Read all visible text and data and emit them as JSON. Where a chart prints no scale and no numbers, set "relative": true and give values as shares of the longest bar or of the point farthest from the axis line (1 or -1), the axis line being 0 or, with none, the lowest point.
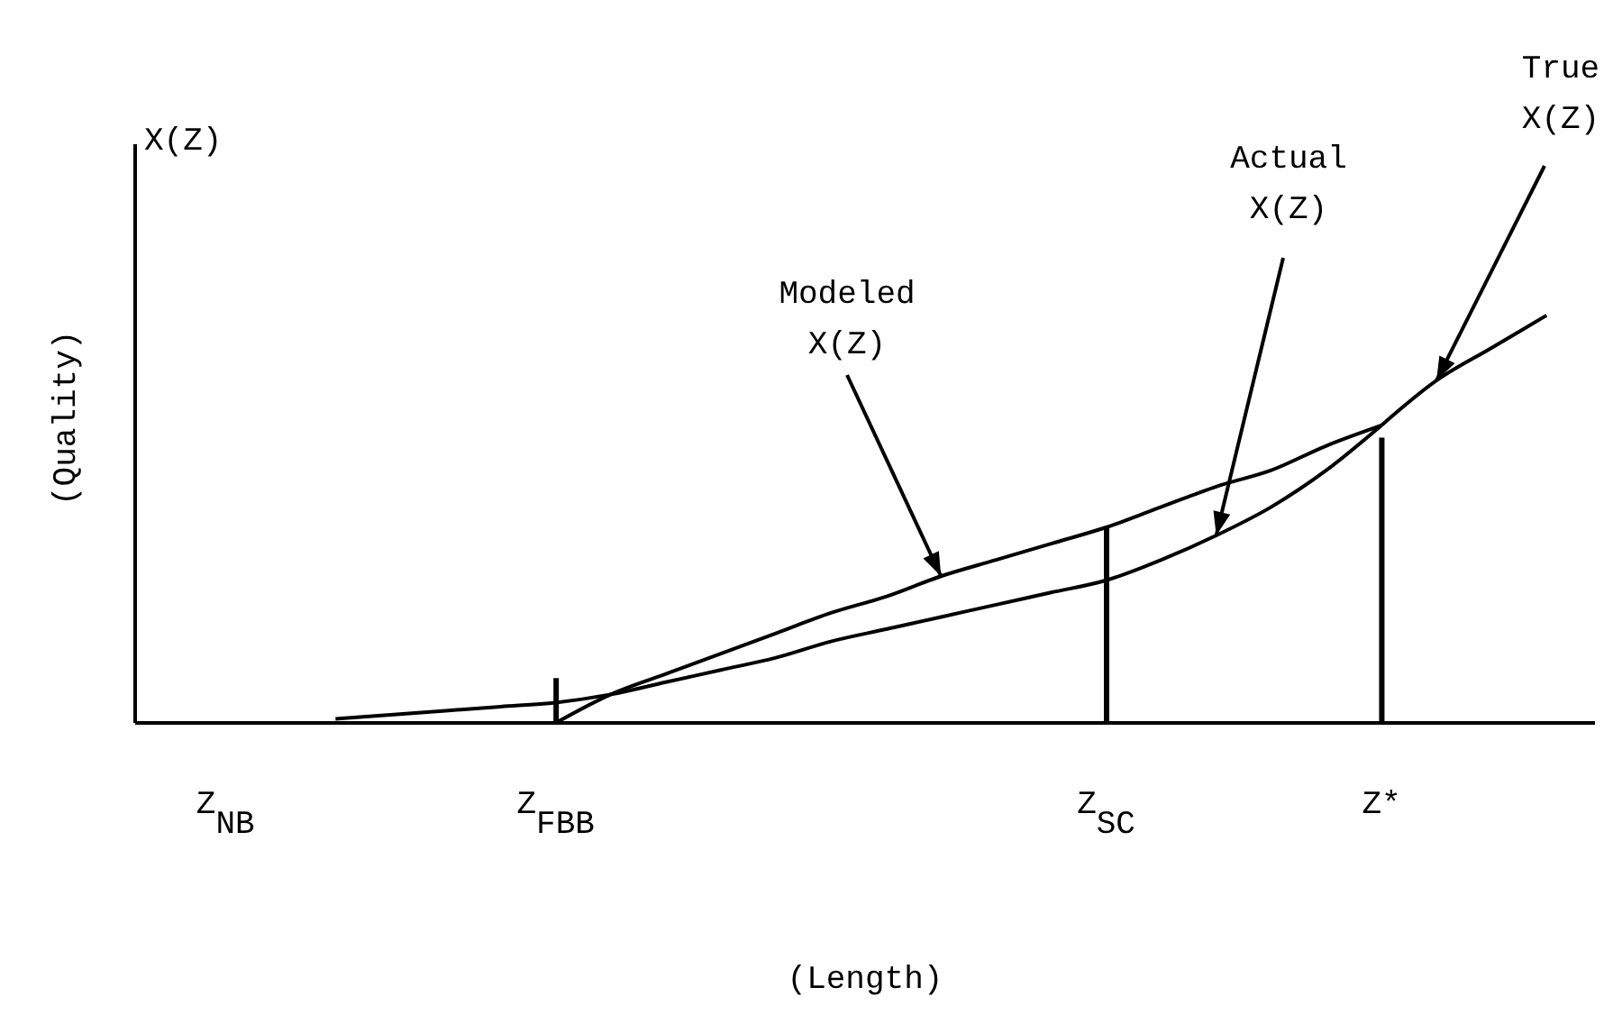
{
  "chart_data": {
    "type": "line",
    "relative": true,
    "xlabel": "(Length)",
    "ylabel": "(Quality)",
    "annotations": [
      "X(Z)"
    ],
    "categories": [
      "Z$_{NB}$",
      null,
      null,
      null,
      null,
      null,
      "Z$_{FBB}$",
      null,
      null,
      null,
      null,
      null,
      null,
      null,
      null,
      null,
      "Z$_{SC}$",
      null,
      null,
      null,
      null,
      "Z*",
      null,
      null,
      null
    ],
    "marker": "none",
    "line_style": "solid",
    "series": [
      {
        "name": "Modeled X(Z)",
        "color": "#000000",
        "values": [
          null,
          null,
          null,
          null,
          null,
          null,
          0,
          0.07,
          0.12,
          0.17,
          0.22,
          0.27,
          0.31,
          0.36,
          0.4,
          0.44,
          0.48,
          0.53,
          0.58,
          0.62,
          0.68,
          0.73,
          null,
          null,
          null
        ]
      },
      {
        "name": "Actual X(Z)",
        "color": "#000000",
        "values": [
          null,
          null,
          0.01,
          0.02,
          0.03,
          0.04,
          0.05,
          0.07,
          0.1,
          0.13,
          0.16,
          0.2,
          0.23,
          0.26,
          0.29,
          0.32,
          0.35,
          0.4,
          0.46,
          0.53,
          0.62,
          0.73,
          null,
          null,
          null
        ]
      },
      {
        "name": "True X(Z)",
        "color": "#000000",
        "values": [
          null,
          null,
          null,
          null,
          null,
          null,
          null,
          null,
          null,
          null,
          null,
          null,
          null,
          null,
          null,
          null,
          null,
          null,
          null,
          null,
          null,
          0.73,
          0.84,
          0.92,
          1
        ]
      },
      {
        "type": "bar",
        "color": "#000000",
        "values": [
          null,
          null,
          null,
          null,
          null,
          null,
          0.11,
          null,
          null,
          null,
          null,
          null,
          null,
          null,
          null,
          null,
          0.48,
          null,
          null,
          null,
          null,
          0.7,
          null,
          null,
          null
        ]
      }
    ]
  }
}
